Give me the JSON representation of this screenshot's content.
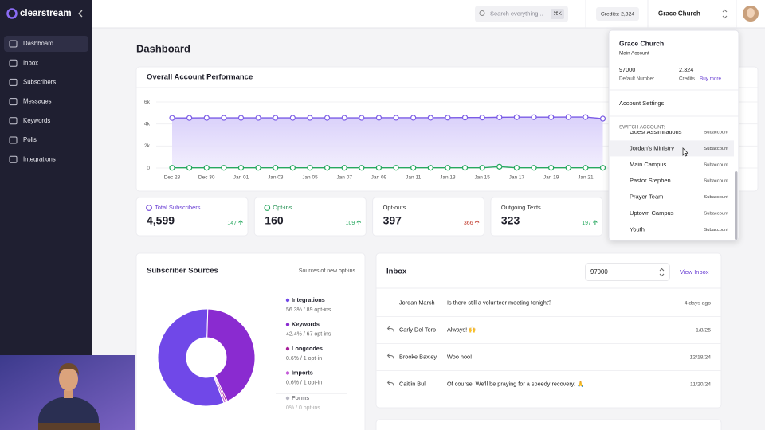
{
  "sidebar": {
    "brand": "clearstream",
    "nav": [
      "Dashboard",
      "Inbox",
      "Subscribers",
      "Messages",
      "Keywords",
      "Polls",
      "Integrations"
    ]
  },
  "topbar": {
    "search_placeholder": "Search everything...",
    "shortcut": "⌘K",
    "credits": "Credits: 2,324",
    "account": "Grace Church"
  },
  "page_title": "Dashboard",
  "performance": {
    "title": "Overall Account Performance",
    "chart": {
      "type": "line",
      "categories": [
        "Dec 28",
        null,
        "Dec 30",
        null,
        "Jan 01",
        null,
        "Jan 03",
        null,
        "Jan 05",
        null,
        "Jan 07",
        null,
        "Jan 09",
        null,
        "Jan 11",
        null,
        "Jan 13",
        null,
        "Jan 15",
        null,
        "Jan 17",
        null,
        "Jan 19",
        null,
        "Jan 21",
        null
      ],
      "series": [
        {
          "color": "#7b5ce6",
          "values": [
            4540,
            4540,
            4550,
            4550,
            4550,
            4550,
            4550,
            4550,
            4550,
            4550,
            4550,
            4550,
            4560,
            4560,
            4560,
            4560,
            4570,
            4580,
            4580,
            4600,
            4610,
            4610,
            4610,
            4620,
            4620,
            4480
          ]
        },
        {
          "color": "#27a85f",
          "values": [
            20,
            20,
            20,
            20,
            20,
            20,
            20,
            20,
            20,
            20,
            20,
            20,
            20,
            20,
            20,
            20,
            20,
            20,
            20,
            120,
            20,
            20,
            20,
            20,
            20,
            20
          ]
        }
      ],
      "ylim": [
        0,
        6000
      ],
      "yticks": [
        0,
        {
          "value": 2000,
          "label": "2k"
        },
        {
          "value": 4000,
          "label": "4k"
        },
        {
          "value": 6000,
          "label": "6k"
        }
      ],
      "grid": true
    }
  },
  "stats": [
    {
      "label": "Total Subscribers",
      "value": "4,599",
      "change": "147"
    },
    {
      "label": "Opt-ins",
      "value": "160",
      "change": "109"
    },
    {
      "label": "Opt-outs",
      "value": "397",
      "change": "366"
    },
    {
      "label": "Outgoing Texts",
      "value": "323",
      "change": "197"
    }
  ],
  "sources": {
    "title": "Subscriber Sources",
    "subtitle": "Sources of new opt-ins",
    "chart": {
      "type": "pie",
      "categories": [
        "Integrations",
        "Keywords",
        "Longcodes",
        "Imports",
        "Forms"
      ],
      "values": [
        56.3,
        42.4,
        0.6,
        0.6,
        0
      ],
      "details": [
        "56.3% / 89 opt-ins",
        "42.4% / 67 opt-ins",
        "0.6% / 1 opt-in",
        "0.6% / 1 opt-in",
        "0% / 0 opt-ins"
      ],
      "colors": [
        "#7048e8",
        "#8a2bd0",
        "#a8209a",
        "#c45ad8",
        "#b8b8c4"
      ]
    }
  },
  "inbox": {
    "title": "Inbox",
    "number": "97000",
    "link": "View Inbox",
    "messages": [
      {
        "name": "Jordan Marsh",
        "text": "Is there still a volunteer meeting tonight?",
        "date": "4 days ago"
      },
      {
        "name": "Carly Del Toro",
        "text": "Always! 🙌",
        "date": "1/8/25"
      },
      {
        "name": "Brooke Baxley",
        "text": "Woo hoo!",
        "date": "12/18/24"
      },
      {
        "name": "Caitlin Bull",
        "text": "Of course! We'll be praying for a speedy recovery. 🙏",
        "date": "11/20/24"
      }
    ]
  },
  "account_menu": {
    "name": "Grace Church",
    "role": "Main Account",
    "number": "97000",
    "number_label": "Default Number",
    "credits": "2,324",
    "credits_label": "Credits",
    "buy_more": "Buy more",
    "settings": "Account Settings",
    "switch_label": "SWITCH ACCOUNT:",
    "subaccounts": [
      {
        "name": "Guest Assimilations",
        "type": "Subaccount"
      },
      {
        "name": "Jordan's Ministry",
        "type": "Subaccount"
      },
      {
        "name": "Main Campus",
        "type": "Subaccount"
      },
      {
        "name": "Pastor Stephen",
        "type": "Subaccount"
      },
      {
        "name": "Prayer Team",
        "type": "Subaccount"
      },
      {
        "name": "Uptown Campus",
        "type": "Subaccount"
      },
      {
        "name": "Youth",
        "type": "Subaccount"
      }
    ]
  }
}
